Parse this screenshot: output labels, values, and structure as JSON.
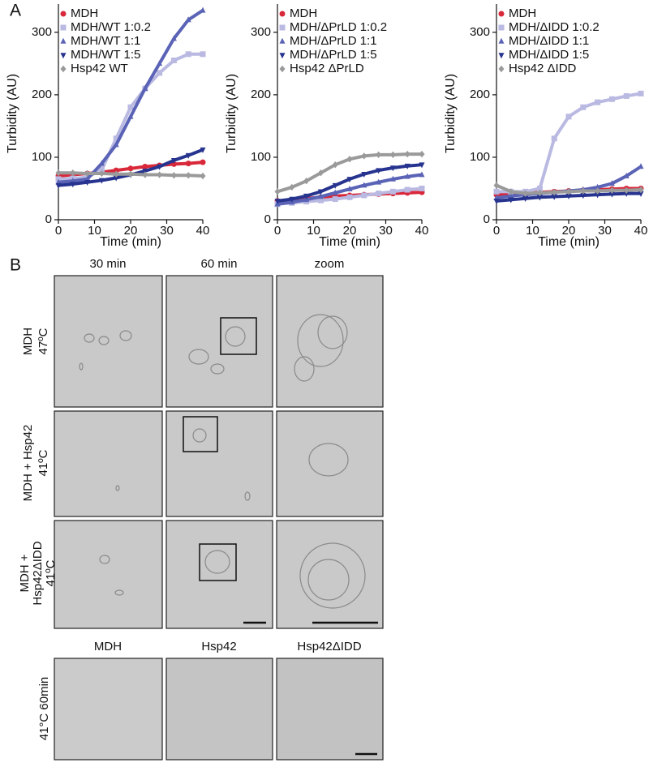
{
  "panel_labels": [
    "A",
    "B"
  ],
  "chart_data": [
    {
      "type": "line",
      "y_label": "Turbidity (AU)",
      "x_label": "Time (min)",
      "xlim": [
        0,
        40
      ],
      "ylim": [
        0,
        340
      ],
      "xticks": [
        0,
        10,
        20,
        30,
        40
      ],
      "yticks": [
        0,
        100,
        200,
        300
      ],
      "legend": "upper left",
      "x": [
        0,
        4,
        8,
        12,
        16,
        20,
        24,
        28,
        32,
        36,
        40
      ],
      "series": [
        {
          "name": "MDH",
          "color": "#d8283a",
          "marker": "circle",
          "values": [
            70,
            72,
            74,
            76,
            79,
            82,
            85,
            87,
            89,
            90,
            92
          ]
        },
        {
          "name": "MDH/WT 1:0.2",
          "color": "#b9b9e2",
          "marker": "square",
          "values": [
            65,
            66,
            68,
            80,
            130,
            180,
            210,
            235,
            255,
            265,
            265
          ]
        },
        {
          "name": "MDH/WT 1:1",
          "color": "#5a63b6",
          "marker": "triangle-up",
          "values": [
            60,
            62,
            65,
            90,
            120,
            165,
            210,
            250,
            290,
            320,
            335
          ]
        },
        {
          "name": "MDH/WT 1:5",
          "color": "#27348f",
          "marker": "triangle-down",
          "values": [
            55,
            57,
            60,
            63,
            67,
            72,
            78,
            85,
            95,
            103,
            112
          ]
        },
        {
          "name": "Hsp42 WT",
          "color": "#9a9a9a",
          "marker": "diamond",
          "values": [
            75,
            75,
            74,
            74,
            73,
            73,
            72,
            72,
            71,
            71,
            70
          ]
        }
      ]
    },
    {
      "type": "line",
      "y_label": "Turbidity (AU)",
      "x_label": "Time (min)",
      "xlim": [
        0,
        40
      ],
      "ylim": [
        0,
        340
      ],
      "xticks": [
        0,
        10,
        20,
        30,
        40
      ],
      "yticks": [
        0,
        100,
        200,
        300
      ],
      "legend": "upper left",
      "x": [
        0,
        4,
        8,
        12,
        16,
        20,
        24,
        28,
        32,
        36,
        40
      ],
      "series": [
        {
          "name": "MDH",
          "color": "#d8283a",
          "marker": "circle",
          "values": [
            30,
            32,
            34,
            36,
            38,
            39,
            40,
            41,
            42,
            43,
            44
          ]
        },
        {
          "name": "MDH/ΔPrLD 1:0.2",
          "color": "#b9b9e2",
          "marker": "square",
          "values": [
            25,
            27,
            29,
            31,
            33,
            36,
            39,
            42,
            45,
            48,
            50
          ]
        },
        {
          "name": "MDH/ΔPrLD 1:1",
          "color": "#5a63b6",
          "marker": "triangle-up",
          "values": [
            25,
            28,
            32,
            37,
            43,
            49,
            55,
            60,
            65,
            69,
            72
          ]
        },
        {
          "name": "MDH/ΔPrLD 1:5",
          "color": "#27348f",
          "marker": "triangle-down",
          "values": [
            30,
            33,
            38,
            45,
            55,
            65,
            73,
            79,
            83,
            86,
            88
          ]
        },
        {
          "name": "Hsp42 ΔPrLD",
          "color": "#9a9a9a",
          "marker": "diamond",
          "values": [
            45,
            52,
            62,
            75,
            88,
            97,
            102,
            104,
            104,
            105,
            105
          ]
        }
      ]
    },
    {
      "type": "line",
      "y_label": "Turbidity (AU)",
      "x_label": "Time (min)",
      "xlim": [
        0,
        40
      ],
      "ylim": [
        0,
        340
      ],
      "xticks": [
        0,
        10,
        20,
        30,
        40
      ],
      "yticks": [
        0,
        100,
        200,
        300
      ],
      "legend": "upper left",
      "x": [
        0,
        4,
        8,
        12,
        16,
        20,
        24,
        28,
        32,
        36,
        40
      ],
      "series": [
        {
          "name": "MDH",
          "color": "#d8283a",
          "marker": "circle",
          "values": [
            40,
            42,
            43,
            44,
            45,
            46,
            47,
            48,
            49,
            50,
            50
          ]
        },
        {
          "name": "MDH/ΔIDD 1:0.2",
          "color": "#b9b9e2",
          "marker": "square",
          "values": [
            45,
            45,
            45,
            50,
            130,
            165,
            180,
            188,
            193,
            198,
            202
          ]
        },
        {
          "name": "MDH/ΔIDD 1:1",
          "color": "#5a63b6",
          "marker": "triangle-up",
          "values": [
            35,
            38,
            40,
            42,
            44,
            46,
            48,
            52,
            58,
            70,
            85
          ]
        },
        {
          "name": "MDH/ΔIDD 1:5",
          "color": "#27348f",
          "marker": "triangle-down",
          "values": [
            30,
            32,
            34,
            36,
            37,
            38,
            39,
            40,
            41,
            42,
            42
          ]
        },
        {
          "name": "Hsp42 ΔIDD",
          "color": "#9a9a9a",
          "marker": "diamond",
          "values": [
            55,
            45,
            42,
            43,
            44,
            45,
            46,
            46,
            47,
            47,
            48
          ]
        }
      ]
    }
  ],
  "micrographs": {
    "column_headers": [
      "30 min",
      "60 min",
      "zoom"
    ],
    "row_labels": [
      [
        "MDH",
        "47ºC"
      ],
      [
        "MDH + Hsp42",
        "41ºC"
      ],
      [
        "MDH +",
        "Hsp42ΔIDD",
        "41ºC"
      ]
    ],
    "control_headers": [
      "MDH",
      "Hsp42",
      "Hsp42ΔIDD"
    ],
    "control_row_label": "41°C 60min"
  }
}
